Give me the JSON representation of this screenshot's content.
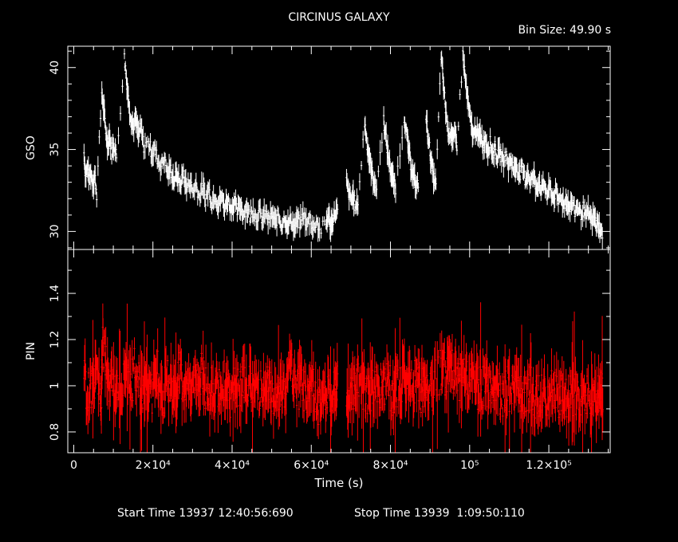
{
  "header": {
    "title": "CIRCINUS GALAXY",
    "bin_size": "Bin Size: 49.90 s"
  },
  "footer": {
    "start_time": "Start Time 13937 12:40:56:690",
    "stop_time": "Stop Time 13939  1:09:50:110"
  },
  "colors": {
    "background": "#000000",
    "gso": "#ffffff",
    "pin": "#ff0000",
    "axes": "#ffffff"
  },
  "chart_data": [
    {
      "type": "scatter",
      "ylabel": "GSO",
      "xlim": [
        -1500,
        135500
      ],
      "ylim": [
        28.9,
        41.3
      ],
      "yticks": [
        30,
        35,
        40
      ],
      "ytick_labels": [
        "30",
        "35",
        "40"
      ],
      "series_color": "#ffffff",
      "error_bars": true,
      "points": [
        [
          2600,
          34.8
        ],
        [
          3000,
          33.4
        ],
        [
          3400,
          33.9
        ],
        [
          3800,
          33.3
        ],
        [
          4300,
          33.6
        ],
        [
          4900,
          32.9
        ],
        [
          5300,
          33.5
        ],
        [
          5800,
          32.3
        ],
        [
          7100,
          38.5
        ],
        [
          7500,
          37.6
        ],
        [
          8000,
          36.4
        ],
        [
          8500,
          35.3
        ],
        [
          9000,
          35.9
        ],
        [
          9600,
          34.8
        ],
        [
          10200,
          35.4
        ],
        [
          10800,
          34.5
        ],
        [
          12800,
          40.6
        ],
        [
          13300,
          39.4
        ],
        [
          13800,
          38.1
        ],
        [
          14400,
          37.0
        ],
        [
          15000,
          36.4
        ],
        [
          15700,
          36.8
        ],
        [
          16300,
          35.9
        ],
        [
          17000,
          36.3
        ],
        [
          17700,
          35.2
        ],
        [
          19000,
          35.4
        ],
        [
          19700,
          34.8
        ],
        [
          20500,
          35.0
        ],
        [
          21300,
          34.3
        ],
        [
          22100,
          34.0
        ],
        [
          22900,
          34.5
        ],
        [
          23700,
          33.5
        ],
        [
          24500,
          33.8
        ],
        [
          25300,
          33.1
        ],
        [
          26100,
          33.5
        ],
        [
          26900,
          32.8
        ],
        [
          27700,
          33.6
        ],
        [
          28500,
          32.6
        ],
        [
          29300,
          33.1
        ],
        [
          30100,
          32.4
        ],
        [
          30900,
          32.9
        ],
        [
          31700,
          32.1
        ],
        [
          32500,
          32.7
        ],
        [
          33300,
          32.0
        ],
        [
          34100,
          32.6
        ],
        [
          34900,
          31.8
        ],
        [
          35700,
          32.3
        ],
        [
          36500,
          31.6
        ],
        [
          37300,
          32.1
        ],
        [
          38100,
          31.5
        ],
        [
          38900,
          32.0
        ],
        [
          39700,
          31.4
        ],
        [
          40500,
          31.8
        ],
        [
          41300,
          31.2
        ],
        [
          42100,
          31.6
        ],
        [
          42900,
          31.1
        ],
        [
          43700,
          31.5
        ],
        [
          44500,
          30.9
        ],
        [
          45300,
          31.4
        ],
        [
          46100,
          30.8
        ],
        [
          46900,
          31.2
        ],
        [
          47700,
          30.7
        ],
        [
          48500,
          31.1
        ],
        [
          49300,
          30.6
        ],
        [
          50100,
          31.0
        ],
        [
          50900,
          30.5
        ],
        [
          51700,
          31.0
        ],
        [
          52500,
          30.4
        ],
        [
          53300,
          30.9
        ],
        [
          54100,
          30.3
        ],
        [
          54900,
          30.8
        ],
        [
          55700,
          30.2
        ],
        [
          56500,
          30.7
        ],
        [
          57300,
          30.5
        ],
        [
          58100,
          31.1
        ],
        [
          58900,
          30.3
        ],
        [
          59700,
          30.9
        ],
        [
          60500,
          30.1
        ],
        [
          61300,
          30.7
        ],
        [
          62100,
          30.0
        ],
        [
          63700,
          30.5
        ],
        [
          64300,
          31.0
        ],
        [
          64900,
          30.3
        ],
        [
          65500,
          30.8
        ],
        [
          66100,
          31.2
        ],
        [
          68900,
          33.0
        ],
        [
          69400,
          32.4
        ],
        [
          70000,
          31.9
        ],
        [
          70600,
          32.2
        ],
        [
          71200,
          31.4
        ],
        [
          71800,
          31.8
        ],
        [
          73500,
          36.6
        ],
        [
          74000,
          35.6
        ],
        [
          74500,
          34.7
        ],
        [
          75000,
          34.0
        ],
        [
          75500,
          33.4
        ],
        [
          76000,
          32.9
        ],
        [
          76500,
          32.6
        ],
        [
          78300,
          36.8
        ],
        [
          78800,
          35.8
        ],
        [
          79300,
          34.9
        ],
        [
          79800,
          34.1
        ],
        [
          80300,
          33.5
        ],
        [
          80800,
          33.0
        ],
        [
          81300,
          32.7
        ],
        [
          83500,
          37.0
        ],
        [
          84000,
          36.0
        ],
        [
          84500,
          35.1
        ],
        [
          85000,
          34.3
        ],
        [
          85500,
          33.7
        ],
        [
          86000,
          33.2
        ],
        [
          86500,
          32.8
        ],
        [
          89000,
          36.9
        ],
        [
          89500,
          35.9
        ],
        [
          90000,
          34.8
        ],
        [
          90500,
          33.9
        ],
        [
          91000,
          33.2
        ],
        [
          91500,
          32.8
        ],
        [
          92800,
          40.8
        ],
        [
          93300,
          39.2
        ],
        [
          93800,
          37.8
        ],
        [
          94300,
          36.6
        ],
        [
          94800,
          35.9
        ],
        [
          95300,
          36.2
        ],
        [
          95800,
          35.5
        ],
        [
          96300,
          35.9
        ],
        [
          96800,
          35.3
        ],
        [
          98300,
          40.8
        ],
        [
          98800,
          39.5
        ],
        [
          99300,
          38.4
        ],
        [
          99800,
          37.4
        ],
        [
          100400,
          36.5
        ],
        [
          101000,
          35.8
        ],
        [
          101600,
          36.4
        ],
        [
          102200,
          35.6
        ],
        [
          102800,
          36.0
        ],
        [
          103400,
          35.3
        ],
        [
          104000,
          35.7
        ],
        [
          104600,
          35.0
        ],
        [
          105200,
          35.4
        ],
        [
          105800,
          34.7
        ],
        [
          106400,
          35.1
        ],
        [
          107000,
          34.5
        ],
        [
          107700,
          34.9
        ],
        [
          108400,
          34.3
        ],
        [
          109100,
          34.7
        ],
        [
          109800,
          34.0
        ],
        [
          110500,
          34.4
        ],
        [
          111200,
          33.7
        ],
        [
          111900,
          34.1
        ],
        [
          112600,
          33.4
        ],
        [
          113300,
          33.8
        ],
        [
          114000,
          33.2
        ],
        [
          114700,
          33.6
        ],
        [
          115400,
          33.0
        ],
        [
          116100,
          33.4
        ],
        [
          116800,
          32.7
        ],
        [
          117500,
          33.1
        ],
        [
          118200,
          32.5
        ],
        [
          118900,
          32.9
        ],
        [
          119600,
          32.2
        ],
        [
          120300,
          32.7
        ],
        [
          121000,
          32.0
        ],
        [
          121700,
          32.4
        ],
        [
          122400,
          31.8
        ],
        [
          123100,
          32.2
        ],
        [
          123800,
          31.6
        ],
        [
          124500,
          32.0
        ],
        [
          125200,
          31.4
        ],
        [
          125900,
          31.8
        ],
        [
          126600,
          31.2
        ],
        [
          127300,
          31.6
        ],
        [
          128000,
          31.0
        ],
        [
          128700,
          31.4
        ],
        [
          129400,
          30.8
        ],
        [
          130100,
          31.2
        ],
        [
          130800,
          30.6
        ],
        [
          131500,
          30.9
        ],
        [
          132000,
          30.3
        ],
        [
          132500,
          30.6
        ],
        [
          133000,
          29.9
        ]
      ]
    },
    {
      "type": "scatter",
      "ylabel": "PIN",
      "xlabel": "Time (s)",
      "xlim": [
        -1500,
        135500
      ],
      "ylim": [
        0.71,
        1.59
      ],
      "yticks": [
        0.8,
        1.0,
        1.2,
        1.4
      ],
      "ytick_labels": [
        "0.8",
        "1",
        "1.2",
        "1.4"
      ],
      "xticks": [
        0,
        20000,
        40000,
        60000,
        80000,
        100000,
        120000
      ],
      "xtick_labels": [
        "0",
        "2×10⁴",
        "4×10⁴",
        "6×10⁴",
        "8×10⁴",
        "10⁵",
        "1.2×10⁵"
      ],
      "series_color": "#ff0000",
      "error_bars": true,
      "points": [
        [
          2600,
          1.02
        ],
        [
          4000,
          0.96
        ],
        [
          5400,
          1.05
        ],
        [
          6800,
          0.93
        ],
        [
          7400,
          1.18
        ],
        [
          8800,
          1.0
        ],
        [
          10200,
          0.98
        ],
        [
          11000,
          0.97
        ],
        [
          12800,
          1.04
        ],
        [
          14200,
          0.99
        ],
        [
          15600,
          1.08
        ],
        [
          17000,
          0.95
        ],
        [
          18400,
          1.03
        ],
        [
          19800,
          0.97
        ],
        [
          21200,
          1.06
        ],
        [
          22600,
          0.96
        ],
        [
          24000,
          1.03
        ],
        [
          25400,
          0.98
        ],
        [
          26800,
          1.07
        ],
        [
          28200,
          0.95
        ],
        [
          29600,
          1.02
        ],
        [
          31000,
          0.99
        ],
        [
          32400,
          1.05
        ],
        [
          33800,
          0.96
        ],
        [
          35200,
          1.0
        ],
        [
          36600,
          0.97
        ],
        [
          38000,
          1.03
        ],
        [
          39400,
          0.94
        ],
        [
          40800,
          1.01
        ],
        [
          42200,
          0.98
        ],
        [
          43600,
          1.04
        ],
        [
          45000,
          0.95
        ],
        [
          46400,
          1.0
        ],
        [
          47800,
          0.96
        ],
        [
          49200,
          1.02
        ],
        [
          50600,
          0.94
        ],
        [
          52000,
          0.99
        ],
        [
          53400,
          0.97
        ],
        [
          54800,
          1.09
        ],
        [
          56200,
          0.95
        ],
        [
          57600,
          1.01
        ],
        [
          59000,
          0.96
        ],
        [
          60400,
          1.0
        ],
        [
          61800,
          0.93
        ],
        [
          63200,
          0.98
        ],
        [
          64600,
          0.95
        ],
        [
          66000,
          1.01
        ],
        [
          68900,
          1.0
        ],
        [
          70300,
          0.96
        ],
        [
          71700,
          1.03
        ],
        [
          73500,
          0.98
        ],
        [
          74900,
          0.95
        ],
        [
          76300,
          1.02
        ],
        [
          77700,
          0.97
        ],
        [
          79100,
          1.04
        ],
        [
          80500,
          0.96
        ],
        [
          81900,
          0.99
        ],
        [
          83500,
          1.01
        ],
        [
          84900,
          0.97
        ],
        [
          86300,
          1.03
        ],
        [
          87700,
          0.98
        ],
        [
          89000,
          1.02
        ],
        [
          90400,
          0.97
        ],
        [
          92800,
          1.08
        ],
        [
          94200,
          1.03
        ],
        [
          95600,
          1.06
        ],
        [
          97000,
          1.01
        ],
        [
          98300,
          1.04
        ],
        [
          99700,
          1.0
        ],
        [
          101100,
          1.03
        ],
        [
          102500,
          0.98
        ],
        [
          103900,
          1.02
        ],
        [
          105300,
          0.97
        ],
        [
          106700,
          1.01
        ],
        [
          108100,
          0.96
        ],
        [
          109500,
          1.0
        ],
        [
          110900,
          0.95
        ],
        [
          112300,
          0.99
        ],
        [
          113700,
          0.96
        ],
        [
          115100,
          1.0
        ],
        [
          116500,
          0.94
        ],
        [
          117900,
          0.98
        ],
        [
          119300,
          0.95
        ],
        [
          120700,
          0.99
        ],
        [
          122100,
          0.94
        ],
        [
          123500,
          0.97
        ],
        [
          124900,
          0.93
        ],
        [
          126300,
          0.97
        ],
        [
          127700,
          0.94
        ],
        [
          129100,
          0.96
        ],
        [
          130500,
          0.93
        ],
        [
          131900,
          0.95
        ],
        [
          133000,
          0.96
        ]
      ]
    }
  ]
}
